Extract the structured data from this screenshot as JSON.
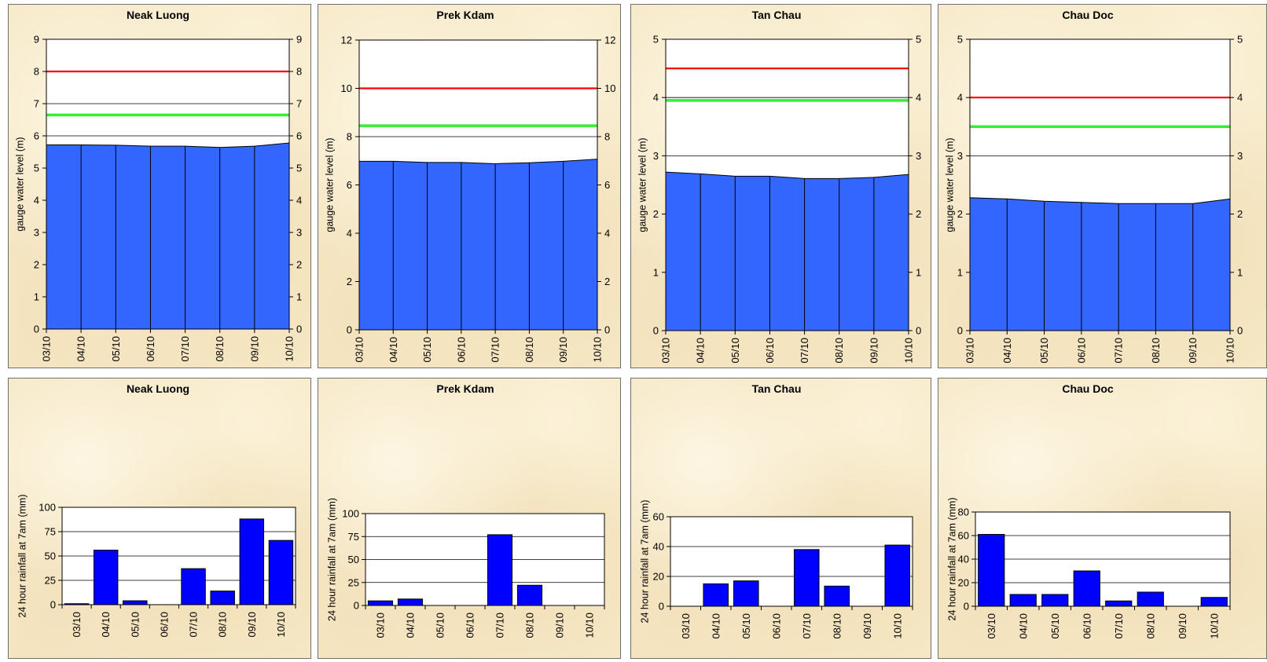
{
  "chart_data": [
    {
      "type": "area",
      "title": "Neak Luong",
      "ylabel": "gauge water level (m)",
      "categories": [
        "03/10",
        "04/10",
        "05/10",
        "06/10",
        "07/10",
        "08/10",
        "09/10",
        "10/10"
      ],
      "values": [
        5.72,
        5.72,
        5.71,
        5.68,
        5.68,
        5.64,
        5.68,
        5.78
      ],
      "reference_lines": [
        {
          "value": 8.0,
          "color": "#ff0000"
        },
        {
          "value": 6.65,
          "color": "#33ee33"
        }
      ],
      "ylim": [
        0,
        9
      ],
      "yticks": [
        0,
        1,
        2,
        3,
        4,
        5,
        6,
        7,
        8,
        9
      ],
      "secondary_y_axis": true,
      "grid": true,
      "fill_color": "#3366ff"
    },
    {
      "type": "area",
      "title": "Prek Kdam",
      "ylabel": "gauge water level (m)",
      "categories": [
        "03/10",
        "04/10",
        "05/10",
        "06/10",
        "07/10",
        "08/10",
        "09/10",
        "10/10"
      ],
      "values": [
        6.98,
        6.98,
        6.93,
        6.93,
        6.88,
        6.92,
        6.98,
        7.07
      ],
      "reference_lines": [
        {
          "value": 10.0,
          "color": "#ff0000"
        },
        {
          "value": 8.45,
          "color": "#33ee33"
        }
      ],
      "ylim": [
        0,
        12
      ],
      "yticks": [
        0,
        2,
        4,
        6,
        8,
        10,
        12
      ],
      "secondary_y_axis": true,
      "grid": true,
      "fill_color": "#3366ff"
    },
    {
      "type": "area",
      "title": "Tan Chau",
      "ylabel": "gauge water level (m)",
      "categories": [
        "03/10",
        "04/10",
        "05/10",
        "06/10",
        "07/10",
        "08/10",
        "09/10",
        "10/10"
      ],
      "values": [
        2.72,
        2.69,
        2.65,
        2.65,
        2.61,
        2.61,
        2.63,
        2.68
      ],
      "reference_lines": [
        {
          "value": 4.5,
          "color": "#ff0000"
        },
        {
          "value": 3.95,
          "color": "#33ee33"
        }
      ],
      "ylim": [
        0,
        5
      ],
      "yticks": [
        0,
        1,
        2,
        3,
        4,
        5
      ],
      "secondary_y_axis": true,
      "grid": true,
      "fill_color": "#3366ff"
    },
    {
      "type": "area",
      "title": "Chau Doc",
      "ylabel": "gauge water level (m)",
      "categories": [
        "03/10",
        "04/10",
        "05/10",
        "06/10",
        "07/10",
        "08/10",
        "09/10",
        "10/10"
      ],
      "values": [
        2.28,
        2.26,
        2.22,
        2.2,
        2.18,
        2.18,
        2.18,
        2.26
      ],
      "reference_lines": [
        {
          "value": 4.0,
          "color": "#ff0000"
        },
        {
          "value": 3.5,
          "color": "#33ee33"
        }
      ],
      "ylim": [
        0,
        5
      ],
      "yticks": [
        0,
        1,
        2,
        3,
        4,
        5
      ],
      "secondary_y_axis": true,
      "grid": true,
      "fill_color": "#3366ff"
    },
    {
      "type": "bar",
      "title": "Neak Luong",
      "ylabel": "24 hour rainfall at 7am (mm)",
      "categories": [
        "03/10",
        "04/10",
        "05/10",
        "06/10",
        "07/10",
        "08/10",
        "09/10",
        "10/10"
      ],
      "values": [
        1,
        56,
        4,
        0,
        37,
        14,
        88,
        66
      ],
      "ylim": [
        0,
        100
      ],
      "yticks": [
        0,
        25,
        50,
        75,
        100
      ],
      "grid": true,
      "bar_color": "#0000ff"
    },
    {
      "type": "bar",
      "title": "Prek Kdam",
      "ylabel": "24 hour rainfall at 7am (mm)",
      "categories": [
        "03/10",
        "04/10",
        "05/10",
        "06/10",
        "07/10",
        "08/10",
        "09/10",
        "10/10"
      ],
      "values": [
        5,
        7,
        0,
        0,
        77,
        22,
        0,
        0
      ],
      "ylim": [
        0,
        100
      ],
      "yticks": [
        0,
        25,
        50,
        75,
        100
      ],
      "grid": true,
      "bar_color": "#0000ff"
    },
    {
      "type": "bar",
      "title": "Tan Chau",
      "ylabel": "24 hour rainfall at 7am (mm)",
      "categories": [
        "03/10",
        "04/10",
        "05/10",
        "06/10",
        "07/10",
        "08/10",
        "09/10",
        "10/10"
      ],
      "values": [
        0,
        15,
        17,
        0,
        38,
        13.5,
        0,
        41
      ],
      "ylim": [
        0,
        60
      ],
      "yticks": [
        0,
        20,
        40,
        60
      ],
      "grid": true,
      "bar_color": "#0000ff"
    },
    {
      "type": "bar",
      "title": "Chau Doc",
      "ylabel": "24 hour rainfall at 7am (mm)",
      "categories": [
        "03/10",
        "04/10",
        "05/10",
        "06/10",
        "07/10",
        "08/10",
        "09/10",
        "10/10"
      ],
      "values": [
        61,
        10,
        10,
        30,
        4.5,
        12,
        0,
        7.5
      ],
      "ylim": [
        0,
        80
      ],
      "yticks": [
        0,
        20,
        40,
        60,
        80
      ],
      "grid": true,
      "bar_color": "#0000ff"
    }
  ]
}
